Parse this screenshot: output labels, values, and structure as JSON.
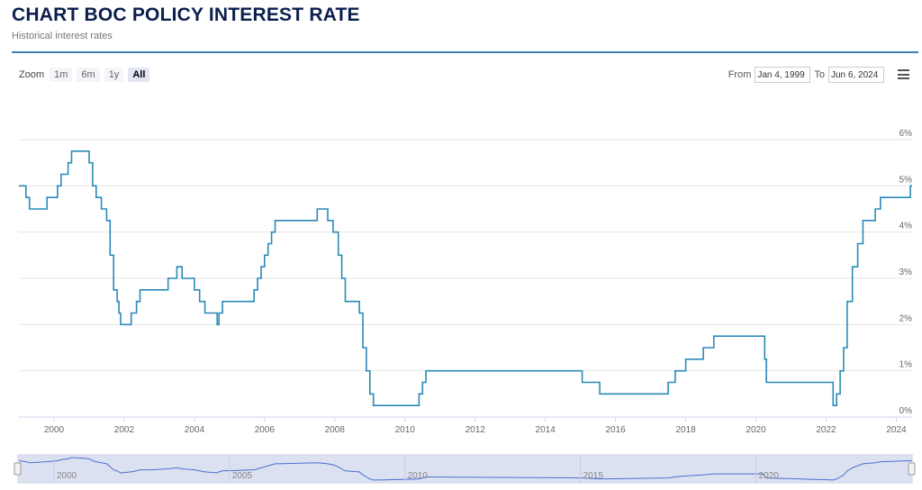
{
  "header": {
    "title": "CHART BOC POLICY INTEREST RATE",
    "subtitle": "Historical interest rates"
  },
  "toolbar": {
    "zoom_label": "Zoom",
    "zoom_buttons": [
      {
        "label": "1m",
        "active": false
      },
      {
        "label": "6m",
        "active": false
      },
      {
        "label": "1y",
        "active": false
      },
      {
        "label": "All",
        "active": true
      }
    ],
    "from_label": "From",
    "from_value": "Jan 4, 1999",
    "to_label": "To",
    "to_value": "Jun 6, 2024",
    "menu_icon": "hamburger-menu-icon"
  },
  "colors": {
    "series": "#2a8ab8",
    "navigator_fill": "#d6dcf0",
    "navigator_line": "#4a6fd0"
  },
  "chart_data": {
    "type": "line",
    "step": true,
    "title": "CHART BOC POLICY INTEREST RATE",
    "subtitle": "Historical interest rates",
    "xlim": [
      1999.0,
      2024.45
    ],
    "ylim": [
      0,
      6
    ],
    "x_ticks": [
      "2000",
      "2002",
      "2004",
      "2006",
      "2008",
      "2010",
      "2012",
      "2014",
      "2016",
      "2018",
      "2020",
      "2022",
      "2024"
    ],
    "y_ticks": [
      "0%",
      "1%",
      "2%",
      "3%",
      "4%",
      "5%",
      "6%"
    ],
    "y_axis_position": "right",
    "grid": true,
    "navigator_ticks": [
      "2000",
      "2005",
      "2010",
      "2015",
      "2020"
    ],
    "series": [
      {
        "x": [
          1999.0,
          1999.2,
          1999.3,
          1999.8,
          2000.1,
          2000.2,
          2000.4,
          2000.5,
          2000.6,
          2001.0,
          2001.1,
          2001.2,
          2001.35,
          2001.5,
          2001.6,
          2001.7,
          2001.8,
          2001.85,
          2001.9,
          2002.2,
          2002.35,
          2002.45,
          2002.75,
          2003.25,
          2003.5,
          2003.65,
          2004.0,
          2004.15,
          2004.3,
          2004.65,
          2004.7,
          2004.8,
          2005.7,
          2005.8,
          2005.9,
          2006.0,
          2006.1,
          2006.2,
          2006.3,
          2006.4,
          2007.5,
          2007.8,
          2007.95,
          2008.1,
          2008.2,
          2008.3,
          2008.7,
          2008.8,
          2008.9,
          2009.0,
          2009.1,
          2009.2,
          2009.3,
          2010.4,
          2010.5,
          2010.6,
          2010.7,
          2015.05,
          2015.55,
          2017.5,
          2017.7,
          2018.0,
          2018.5,
          2018.8,
          2020.2,
          2020.25,
          2020.3,
          2022.2,
          2022.3,
          2022.4,
          2022.5,
          2022.6,
          2022.75,
          2022.9,
          2023.05,
          2023.4,
          2023.55,
          2024.4
        ],
        "y": [
          5.0,
          4.75,
          4.5,
          4.75,
          5.0,
          5.25,
          5.5,
          5.75,
          5.75,
          5.5,
          5.0,
          4.75,
          4.5,
          4.25,
          3.5,
          2.75,
          2.5,
          2.25,
          2.0,
          2.25,
          2.5,
          2.75,
          2.75,
          3.0,
          3.25,
          3.0,
          2.75,
          2.5,
          2.25,
          2.0,
          2.25,
          2.5,
          2.75,
          3.0,
          3.25,
          3.5,
          3.75,
          4.0,
          4.25,
          4.25,
          4.5,
          4.25,
          4.0,
          3.5,
          3.0,
          2.5,
          2.25,
          1.5,
          1.0,
          0.5,
          0.25,
          0.25,
          0.25,
          0.5,
          0.75,
          1.0,
          1.0,
          0.75,
          0.5,
          0.75,
          1.0,
          1.25,
          1.5,
          1.75,
          1.75,
          1.25,
          0.75,
          0.25,
          0.5,
          1.0,
          1.5,
          2.5,
          3.25,
          3.75,
          4.25,
          4.5,
          4.75,
          5.0
        ]
      }
    ]
  }
}
